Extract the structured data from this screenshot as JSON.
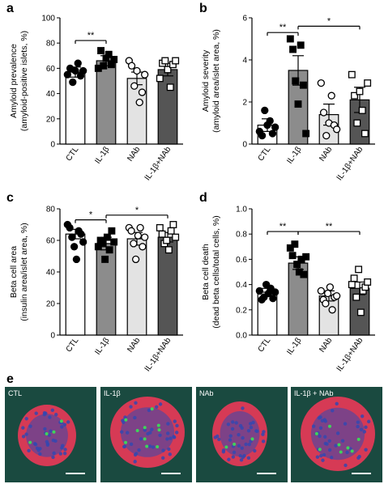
{
  "panels": [
    {
      "letter": "a",
      "ylabel_lines": [
        "Amyloid prevalence",
        "(amyloid-positive islets, %)"
      ],
      "ylim": [
        0,
        100
      ],
      "yticks": [
        "0",
        "20",
        "40",
        "60",
        "80",
        "100"
      ],
      "categories": [
        "CTL",
        "IL-1β",
        "NAb",
        "IL-1β+NAb"
      ],
      "means": [
        57,
        66,
        52,
        59
      ],
      "errors": [
        4,
        4,
        5,
        5
      ],
      "points": [
        [
          55,
          60,
          49,
          58,
          64,
          54,
          58
        ],
        [
          60,
          74,
          62,
          68,
          71,
          63,
          67
        ],
        [
          66,
          62,
          46,
          58,
          33,
          41,
          55
        ],
        [
          52,
          64,
          66,
          59,
          45,
          63,
          66
        ]
      ],
      "sig": [
        {
          "from": 0,
          "to": 1,
          "label": "**",
          "y": 82
        }
      ]
    },
    {
      "letter": "b",
      "ylabel_lines": [
        "Amyloid severity",
        "(amyloid area/islet area, %)"
      ],
      "ylim": [
        0,
        6
      ],
      "yticks": [
        "0",
        "2",
        "4",
        "6"
      ],
      "categories": [
        "CTL",
        "IL-1β",
        "NAb",
        "IL-1β+NAb"
      ],
      "means": [
        0.9,
        3.5,
        1.4,
        2.1
      ],
      "errors": [
        0.3,
        0.7,
        0.5,
        0.6
      ],
      "points": [
        [
          0.6,
          0.4,
          1.6,
          0.9,
          1.1,
          0.5,
          0.8
        ],
        [
          5.0,
          4.5,
          3.0,
          1.9,
          4.7,
          2.8,
          0.5
        ],
        [
          2.9,
          1.5,
          0.4,
          1.0,
          2.3,
          0.9,
          0.7
        ],
        [
          3.3,
          2.3,
          1.0,
          2.5,
          1.6,
          0.5,
          2.9
        ]
      ],
      "sig": [
        {
          "from": 0,
          "to": 1,
          "label": "**",
          "y": 5.3
        },
        {
          "from": 1,
          "to": 3,
          "label": "*",
          "y": 5.6
        }
      ]
    },
    {
      "letter": "c",
      "ylabel_lines": [
        "Beta cell area",
        "(insulin area/islet area, %)"
      ],
      "ylim": [
        0,
        80
      ],
      "yticks": [
        "0",
        "20",
        "40",
        "60",
        "80"
      ],
      "categories": [
        "CTL",
        "IL-1β",
        "NAb",
        "IL-1β+NAb"
      ],
      "means": [
        64,
        58,
        61,
        62
      ],
      "errors": [
        3,
        4,
        4,
        3
      ],
      "points": [
        [
          70,
          68,
          62,
          56,
          48,
          66,
          64,
          59
        ],
        [
          56,
          60,
          58,
          48,
          62,
          54,
          66,
          59
        ],
        [
          68,
          66,
          58,
          48,
          63,
          68,
          56,
          62
        ],
        [
          68,
          64,
          58,
          60,
          54,
          66,
          70,
          62
        ]
      ],
      "sig": [
        {
          "from": 0,
          "to": 1,
          "label": "*",
          "y": 73
        },
        {
          "from": 1,
          "to": 3,
          "label": "*",
          "y": 76
        }
      ]
    },
    {
      "letter": "d",
      "ylabel_lines": [
        "Beta cell death",
        "(dead beta cells/total cells, %)"
      ],
      "ylim": [
        0,
        1.0
      ],
      "yticks": [
        "0.0",
        "0.2",
        "0.4",
        "0.6",
        "0.8",
        "1.0"
      ],
      "categories": [
        "CTL",
        "IL-1β",
        "NAb",
        "IL-1β+NAb"
      ],
      "means": [
        0.34,
        0.57,
        0.31,
        0.37
      ],
      "errors": [
        0.03,
        0.05,
        0.04,
        0.05
      ],
      "points": [
        [
          0.35,
          0.28,
          0.3,
          0.4,
          0.33,
          0.37,
          0.29,
          0.34
        ],
        [
          0.69,
          0.63,
          0.72,
          0.56,
          0.5,
          0.6,
          0.48,
          0.62
        ],
        [
          0.35,
          0.28,
          0.25,
          0.33,
          0.38,
          0.2,
          0.3,
          0.31
        ],
        [
          0.4,
          0.45,
          0.3,
          0.52,
          0.18,
          0.35,
          0.38,
          0.42
        ]
      ],
      "sig": [
        {
          "from": 0,
          "to": 1,
          "label": "**",
          "y": 0.82
        },
        {
          "from": 1,
          "to": 3,
          "label": "**",
          "y": 0.82
        }
      ]
    }
  ],
  "chart_data": [
    {
      "type": "bar",
      "title": "",
      "ylabel": "Amyloid prevalence (amyloid-positive islets, %)",
      "categories": [
        "CTL",
        "IL-1β",
        "NAb",
        "IL-1β+NAb"
      ],
      "values": [
        57,
        66,
        52,
        59
      ],
      "ylim": [
        0,
        100
      ]
    },
    {
      "type": "bar",
      "title": "",
      "ylabel": "Amyloid severity (amyloid area/islet area, %)",
      "categories": [
        "CTL",
        "IL-1β",
        "NAb",
        "IL-1β+NAb"
      ],
      "values": [
        0.9,
        3.5,
        1.4,
        2.1
      ],
      "ylim": [
        0,
        6
      ]
    },
    {
      "type": "bar",
      "title": "",
      "ylabel": "Beta cell area (insulin area/islet area, %)",
      "categories": [
        "CTL",
        "IL-1β",
        "NAb",
        "IL-1β+NAb"
      ],
      "values": [
        64,
        58,
        61,
        62
      ],
      "ylim": [
        0,
        80
      ]
    },
    {
      "type": "bar",
      "title": "",
      "ylabel": "Beta cell death (dead beta cells/total cells, %)",
      "categories": [
        "CTL",
        "IL-1β",
        "NAb",
        "IL-1β+NAb"
      ],
      "values": [
        0.34,
        0.57,
        0.31,
        0.37
      ],
      "ylim": [
        0,
        1.0
      ]
    }
  ],
  "style": {
    "bar_fills": [
      "#ffffff",
      "#8c8c8c",
      "#e3e3e3",
      "#555555"
    ],
    "point_fills": [
      "#000000",
      "#000000",
      "#ffffff",
      "#ffffff"
    ],
    "point_shapes": [
      "circle",
      "square",
      "circle",
      "square"
    ]
  },
  "micrographs": {
    "letter": "e",
    "labels": [
      "CTL",
      "IL-1β",
      "NAb",
      "IL-1β + NAb"
    ],
    "colors": {
      "background": "#1a4a40",
      "alpha_cells": "#d63a55",
      "nuclei": "#3448b0",
      "amyloid": "#3fd35a"
    }
  }
}
